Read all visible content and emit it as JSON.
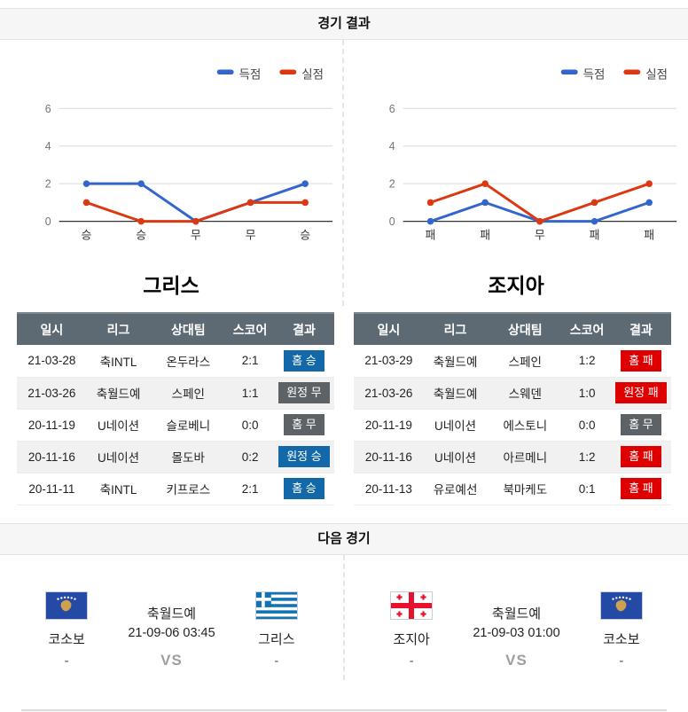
{
  "sections": {
    "results": "경기 결과",
    "next": "다음 경기"
  },
  "legend": {
    "scored": "득점",
    "conceded": "실점"
  },
  "teams": {
    "left": "그리스",
    "right": "조지아"
  },
  "colors": {
    "win_badge": "#1268a9",
    "draw_badge": "#5c6266",
    "loss_badge": "#de0000",
    "scored_line": "#3366cc",
    "conceded_line": "#dc3912",
    "table_header_bg": "#5e6a73"
  },
  "chart_data": [
    {
      "type": "line",
      "team": "그리스",
      "categories": [
        "승",
        "승",
        "무",
        "무",
        "승"
      ],
      "series": [
        {
          "name": "득점",
          "color": "#3366cc",
          "values": [
            2,
            2,
            0,
            1,
            2
          ]
        },
        {
          "name": "실점",
          "color": "#dc3912",
          "values": [
            1,
            0,
            0,
            1,
            1
          ]
        }
      ],
      "ylim": [
        0,
        6
      ],
      "yticks": [
        0,
        2,
        4,
        6
      ],
      "grid": true,
      "legend_position": "top-right"
    },
    {
      "type": "line",
      "team": "조지아",
      "categories": [
        "패",
        "패",
        "무",
        "패",
        "패"
      ],
      "series": [
        {
          "name": "득점",
          "color": "#3366cc",
          "values": [
            0,
            1,
            0,
            0,
            1
          ]
        },
        {
          "name": "실점",
          "color": "#dc3912",
          "values": [
            1,
            2,
            0,
            1,
            2
          ]
        }
      ],
      "ylim": [
        0,
        6
      ],
      "yticks": [
        0,
        2,
        4,
        6
      ],
      "grid": true,
      "legend_position": "top-right"
    }
  ],
  "table": {
    "headers": [
      "일시",
      "리그",
      "상대팀",
      "스코어",
      "결과"
    ],
    "left_rows": [
      {
        "date": "21-03-28",
        "league": "축INTL",
        "opponent": "온두라스",
        "score": "2:1",
        "result": "홈 승",
        "result_type": "win"
      },
      {
        "date": "21-03-26",
        "league": "축월드예",
        "opponent": "스페인",
        "score": "1:1",
        "result": "원정 무",
        "result_type": "draw"
      },
      {
        "date": "20-11-19",
        "league": "U네이션",
        "opponent": "슬로베니",
        "score": "0:0",
        "result": "홈 무",
        "result_type": "draw"
      },
      {
        "date": "20-11-16",
        "league": "U네이션",
        "opponent": "몰도바",
        "score": "0:2",
        "result": "원정 승",
        "result_type": "win"
      },
      {
        "date": "20-11-11",
        "league": "축INTL",
        "opponent": "키프로스",
        "score": "2:1",
        "result": "홈 승",
        "result_type": "win"
      }
    ],
    "right_rows": [
      {
        "date": "21-03-29",
        "league": "축월드예",
        "opponent": "스페인",
        "score": "1:2",
        "result": "홈 패",
        "result_type": "loss"
      },
      {
        "date": "21-03-26",
        "league": "축월드예",
        "opponent": "스웨덴",
        "score": "1:0",
        "result": "원정 패",
        "result_type": "loss"
      },
      {
        "date": "20-11-19",
        "league": "U네이션",
        "opponent": "에스토니",
        "score": "0:0",
        "result": "홈 무",
        "result_type": "draw"
      },
      {
        "date": "20-11-16",
        "league": "U네이션",
        "opponent": "아르메니",
        "score": "1:2",
        "result": "홈 패",
        "result_type": "loss"
      },
      {
        "date": "20-11-13",
        "league": "유로예선",
        "opponent": "북마케도",
        "score": "0:1",
        "result": "홈 패",
        "result_type": "loss"
      }
    ]
  },
  "next_matches": [
    {
      "league": "축월드예",
      "datetime": "21-09-06 03:45",
      "vs": "VS",
      "home": {
        "name": "코소보",
        "score": "-",
        "flag": "kosovo"
      },
      "away": {
        "name": "그리스",
        "score": "-",
        "flag": "greece"
      }
    },
    {
      "league": "축월드예",
      "datetime": "21-09-03 01:00",
      "vs": "VS",
      "home": {
        "name": "조지아",
        "score": "-",
        "flag": "georgia"
      },
      "away": {
        "name": "코소보",
        "score": "-",
        "flag": "kosovo"
      }
    }
  ]
}
